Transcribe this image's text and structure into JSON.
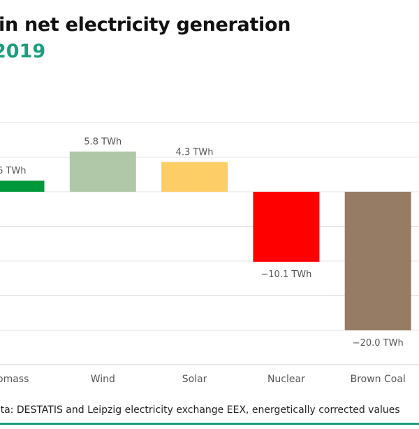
{
  "title": "in net electricity generation",
  "subtitle": "2019",
  "source": "ata: DESTATIS and Leipzig electricity exchange EEX, energetically corrected values",
  "colors": {
    "accent": "#1a9e7e"
  },
  "chart_data": {
    "type": "bar",
    "categories": [
      "Biomass",
      "Wind",
      "Solar",
      "Nuclear",
      "Brown Coal"
    ],
    "category_labels": [
      "omass",
      "Wind",
      "Solar",
      "Nuclear",
      "Brown Coal"
    ],
    "values": [
      1.6,
      5.8,
      4.3,
      -10.1,
      -20.0
    ],
    "data_labels": [
      "6 TWh",
      "5.8 TWh",
      "4.3 TWh",
      "−10.1 TWh",
      "−20.0 TWh"
    ],
    "colors": [
      "#00963a",
      "#b0c8a8",
      "#fdcd66",
      "#ff0000",
      "#967c64"
    ],
    "unit": "TWh",
    "ylim": [
      -20,
      10
    ],
    "grid": true
  }
}
